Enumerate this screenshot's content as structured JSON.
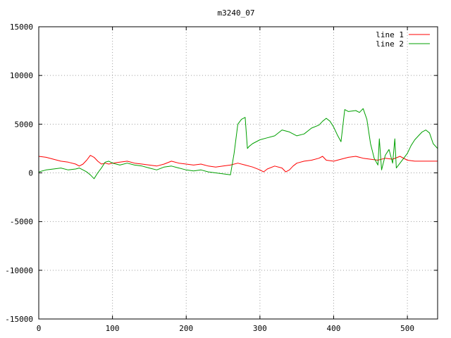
{
  "chart_data": {
    "type": "line",
    "title": "m3240_07",
    "xlim": [
      0,
      541
    ],
    "ylim": [
      -15000,
      15000
    ],
    "x_ticks": [
      0,
      100,
      200,
      300,
      400,
      500
    ],
    "y_ticks": [
      -15000,
      -10000,
      -5000,
      0,
      5000,
      10000,
      15000
    ],
    "grid": true,
    "legend_position": "top-right",
    "series": [
      {
        "name": "line 1",
        "color": "#ff0000",
        "x": [
          0,
          10,
          20,
          30,
          40,
          50,
          55,
          60,
          65,
          70,
          75,
          80,
          85,
          90,
          95,
          100,
          110,
          120,
          130,
          140,
          150,
          160,
          170,
          180,
          190,
          200,
          210,
          220,
          230,
          240,
          250,
          260,
          270,
          280,
          290,
          300,
          305,
          310,
          320,
          330,
          335,
          340,
          345,
          350,
          360,
          370,
          380,
          385,
          390,
          400,
          410,
          420,
          430,
          440,
          450,
          460,
          470,
          480,
          490,
          500,
          510,
          520,
          530,
          541
        ],
        "y": [
          1700,
          1600,
          1400,
          1200,
          1100,
          900,
          700,
          900,
          1300,
          1800,
          1600,
          1200,
          900,
          1000,
          900,
          1000,
          1100,
          1200,
          1000,
          900,
          800,
          700,
          900,
          1200,
          1000,
          900,
          800,
          900,
          700,
          600,
          700,
          800,
          1000,
          800,
          600,
          300,
          100,
          400,
          700,
          500,
          100,
          300,
          700,
          1000,
          1200,
          1300,
          1500,
          1700,
          1300,
          1200,
          1400,
          1600,
          1700,
          1500,
          1400,
          1300,
          1500,
          1400,
          1700,
          1300,
          1200,
          1200,
          1200,
          1200
        ]
      },
      {
        "name": "line 2",
        "color": "#00a000",
        "x": [
          0,
          10,
          20,
          30,
          40,
          50,
          55,
          60,
          65,
          70,
          75,
          80,
          85,
          90,
          95,
          100,
          110,
          120,
          130,
          140,
          150,
          160,
          170,
          180,
          190,
          200,
          210,
          220,
          230,
          240,
          250,
          260,
          265,
          270,
          275,
          280,
          283,
          285,
          290,
          300,
          310,
          320,
          330,
          340,
          350,
          360,
          370,
          380,
          385,
          390,
          395,
          400,
          405,
          410,
          412,
          415,
          420,
          430,
          435,
          440,
          445,
          450,
          455,
          460,
          462,
          465,
          470,
          475,
          480,
          483,
          485,
          490,
          495,
          500,
          505,
          510,
          515,
          520,
          525,
          530,
          535,
          541
        ],
        "y": [
          100,
          300,
          400,
          500,
          300,
          400,
          500,
          300,
          100,
          -200,
          -600,
          0,
          500,
          1100,
          1200,
          1000,
          800,
          1000,
          800,
          700,
          500,
          300,
          600,
          700,
          500,
          300,
          200,
          300,
          100,
          0,
          -100,
          -200,
          2000,
          5000,
          5500,
          5700,
          2500,
          2700,
          3000,
          3400,
          3600,
          3800,
          4400,
          4200,
          3800,
          4000,
          4600,
          4900,
          5300,
          5600,
          5300,
          4700,
          3900,
          3200,
          4500,
          6500,
          6300,
          6400,
          6200,
          6600,
          5500,
          3000,
          1500,
          800,
          3500,
          300,
          1800,
          2400,
          1000,
          3500,
          500,
          1000,
          1500,
          2000,
          2800,
          3400,
          3800,
          4200,
          4400,
          4100,
          3000,
          2500
        ]
      }
    ]
  }
}
